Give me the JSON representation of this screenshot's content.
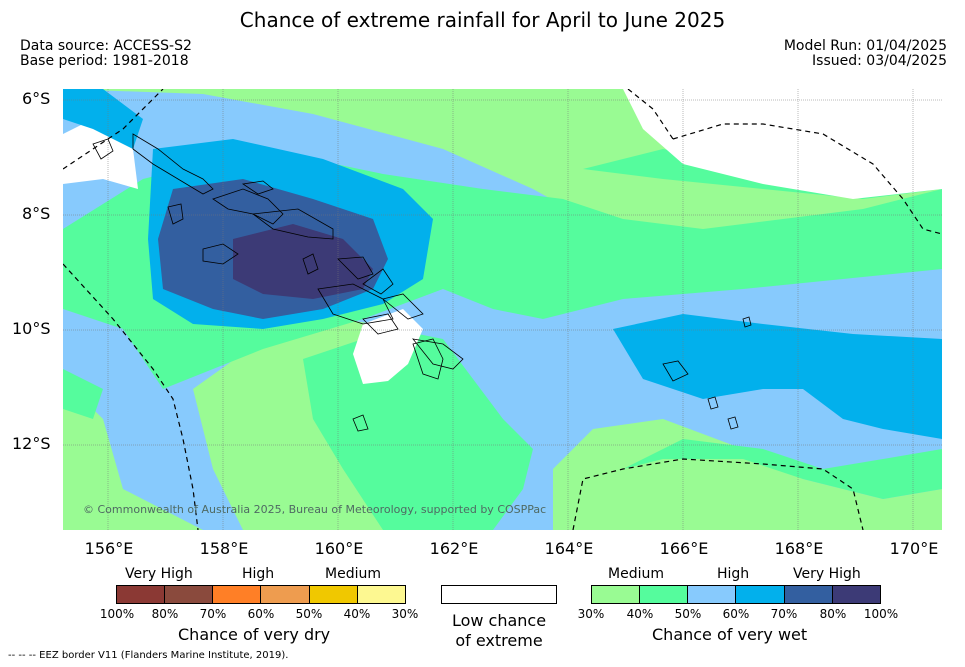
{
  "header": {
    "title": "Chance of extreme rainfall for April to June 2025",
    "data_source": "Data source: ACCESS-S2",
    "base_period": "Base period: 1981-2018",
    "model_run": "Model Run: 01/04/2025",
    "issued": "Issued: 03/04/2025"
  },
  "map": {
    "lat_labels": [
      "6°S",
      "8°S",
      "10°S",
      "12°S"
    ],
    "lon_labels": [
      "156°E",
      "158°E",
      "160°E",
      "162°E",
      "164°E",
      "166°E",
      "168°E",
      "170°E"
    ],
    "copyright": "© Commonwealth of Australia 2025, Bureau of Meteorology, supported by COSPPac"
  },
  "colors": {
    "wet_30_40": "#99fb93",
    "wet_40_50": "#55fc9d",
    "wet_50_60": "#87cafd",
    "wet_60_70": "#02b0ec",
    "wet_70_80": "#335fa0",
    "wet_80_100": "#3c3a76",
    "dry_100_80": "#8b3934",
    "dry_80_70": "#8a4a3d",
    "dry_70_60": "#ff7f26",
    "dry_60_50": "#ee9c4f",
    "dry_50_40": "#f0c800",
    "dry_40_30": "#fdf891",
    "low": "#ffffff"
  },
  "dry_legend": {
    "categories": [
      "Very High",
      "High",
      "Medium"
    ],
    "ticks": [
      "100%",
      "80%",
      "70%",
      "60%",
      "50%",
      "40%",
      "30%"
    ],
    "title": "Chance of very dry"
  },
  "low_legend": {
    "line1": "Low chance",
    "line2": "of extreme"
  },
  "wet_legend": {
    "categories": [
      "Medium",
      "High",
      "Very High"
    ],
    "ticks": [
      "30%",
      "40%",
      "50%",
      "60%",
      "70%",
      "80%",
      "100%"
    ],
    "title": "Chance of very wet"
  },
  "footer": {
    "eez_note": "--  --  -- EEZ border V11 (Flanders Marine Institute, 2019)."
  }
}
